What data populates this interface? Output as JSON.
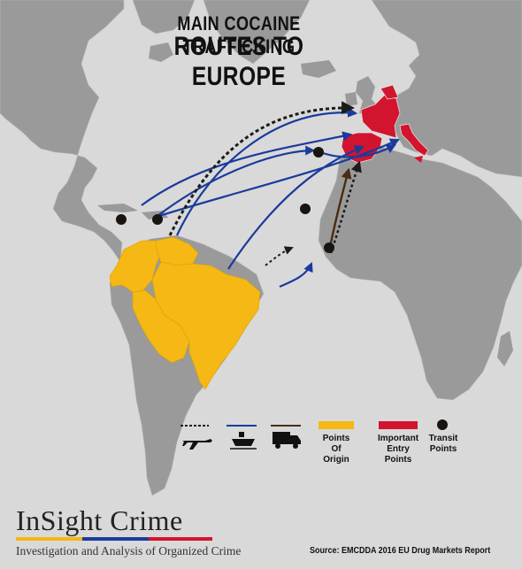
{
  "title": {
    "line1": "MAIN COCAINE TRAFFICKING",
    "line2": "ROUTES TO EUROPE"
  },
  "colors": {
    "ocean": "#d9d9d9",
    "land": "#9a9a9a",
    "origin": "#f5b814",
    "entry": "#d3142e",
    "ship_route": "#1a3b9c",
    "air_route": "#1b1b1b",
    "truck_route": "#4a2c0f",
    "transit": "#1a1410"
  },
  "legend": {
    "air_icon": "airplane-icon",
    "ship_icon": "ship-icon",
    "truck_icon": "truck-icon",
    "origin_label_1": "Points",
    "origin_label_2": "Of",
    "origin_label_3": "Origin",
    "entry_label_1": "Important",
    "entry_label_2": "Entry",
    "entry_label_3": "Points",
    "transit_label_1": "Transit",
    "transit_label_2": "Points"
  },
  "logo": {
    "name": "InSight Crime",
    "tagline": "Investigation and Analysis of Organized Crime",
    "bar_colors": [
      "#f5b814",
      "#1a3b9c",
      "#d3142e"
    ]
  },
  "source": "Source: EMCDDA 2016 EU Drug Markets Report"
}
